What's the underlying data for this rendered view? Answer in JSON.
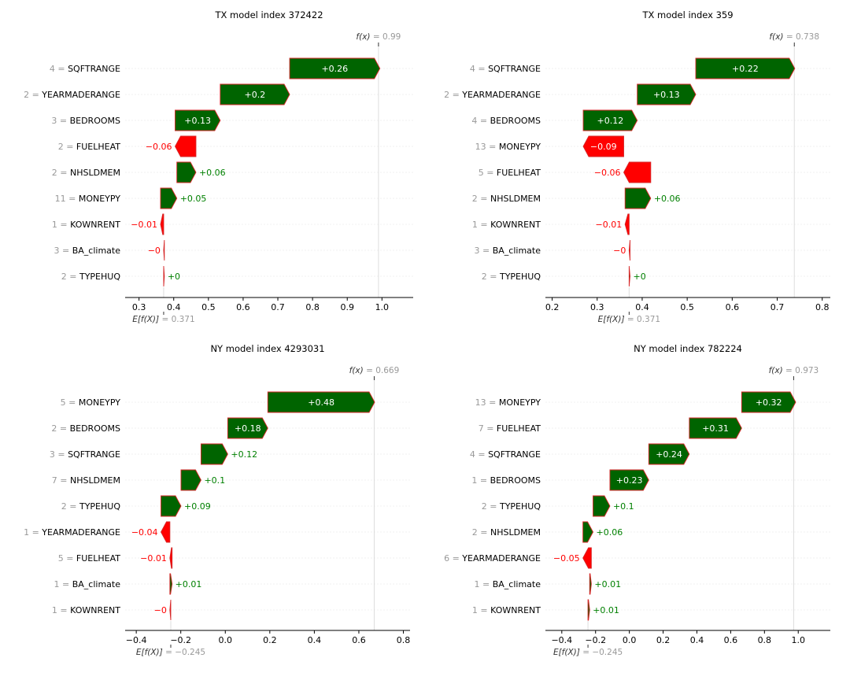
{
  "chart_data": [
    {
      "type": "waterfall",
      "title": "TX model index 372422",
      "fx_label": "f(x)",
      "fx_value": "= 0.99",
      "efx_label": "E[f(X)]",
      "efx_value": "= 0.371",
      "base_value": 0.371,
      "final_value": 0.99,
      "xlim": [
        0.26,
        1.09
      ],
      "xticks": [
        0.3,
        0.4,
        0.5,
        0.6,
        0.7,
        0.8,
        0.9,
        1.0
      ],
      "xtick_labels": [
        "0.3",
        "0.4",
        "0.5",
        "0.6",
        "0.7",
        "0.8",
        "0.9",
        "1.0"
      ],
      "features": [
        {
          "value": "4",
          "name": "SQFTRANGE",
          "shap": 0.26,
          "label": "+0.26"
        },
        {
          "value": "2",
          "name": "YEARMADERANGE",
          "shap": 0.2,
          "label": "+0.2"
        },
        {
          "value": "3",
          "name": "BEDROOMS",
          "shap": 0.13,
          "label": "+0.13"
        },
        {
          "value": "2",
          "name": "FUELHEAT",
          "shap": -0.06,
          "label": "−0.06"
        },
        {
          "value": "2",
          "name": "NHSLDMEM",
          "shap": 0.055,
          "label": "+0.06"
        },
        {
          "value": "11",
          "name": "MONEYPY",
          "shap": 0.047,
          "label": "+0.05"
        },
        {
          "value": "1",
          "name": "KOWNRENT",
          "shap": -0.009,
          "label": "−0.01"
        },
        {
          "value": "3",
          "name": "BA_climate",
          "shap": -0.002,
          "label": "−0"
        },
        {
          "value": "2",
          "name": "TYPEHUQ",
          "shap": 0.002,
          "label": "+0"
        }
      ]
    },
    {
      "type": "waterfall",
      "title": "TX model index 359",
      "fx_label": "f(x)",
      "fx_value": "= 0.738",
      "efx_label": "E[f(X)]",
      "efx_value": "= 0.371",
      "base_value": 0.371,
      "final_value": 0.738,
      "xlim": [
        0.185,
        0.818
      ],
      "xticks": [
        0.2,
        0.3,
        0.4,
        0.5,
        0.6,
        0.7,
        0.8
      ],
      "xtick_labels": [
        "0.2",
        "0.3",
        "0.4",
        "0.5",
        "0.6",
        "0.7",
        "0.8"
      ],
      "features": [
        {
          "value": "4",
          "name": "SQFTRANGE",
          "shap": 0.22,
          "label": "+0.22"
        },
        {
          "value": "2",
          "name": "YEARMADERANGE",
          "shap": 0.13,
          "label": "+0.13"
        },
        {
          "value": "4",
          "name": "BEDROOMS",
          "shap": 0.12,
          "label": "+0.12"
        },
        {
          "value": "13",
          "name": "MONEYPY",
          "shap": -0.09,
          "label": "−0.09"
        },
        {
          "value": "5",
          "name": "FUELHEAT",
          "shap": -0.06,
          "label": "−0.06"
        },
        {
          "value": "2",
          "name": "NHSLDMEM",
          "shap": 0.057,
          "label": "+0.06"
        },
        {
          "value": "1",
          "name": "KOWNRENT",
          "shap": -0.009,
          "label": "−0.01"
        },
        {
          "value": "3",
          "name": "BA_climate",
          "shap": -0.002,
          "label": "−0"
        },
        {
          "value": "2",
          "name": "TYPEHUQ",
          "shap": 0.002,
          "label": "+0"
        }
      ]
    },
    {
      "type": "waterfall",
      "title": "NY model index 4293031",
      "fx_label": "f(x)",
      "fx_value": "= 0.669",
      "efx_label": "E[f(X)]",
      "efx_value": "= −0.245",
      "base_value": -0.245,
      "final_value": 0.669,
      "xlim": [
        -0.45,
        0.83
      ],
      "xticks": [
        -0.4,
        -0.2,
        0.0,
        0.2,
        0.4,
        0.6,
        0.8
      ],
      "xtick_labels": [
        "−0.4",
        "−0.2",
        "0.0",
        "0.2",
        "0.4",
        "0.6",
        "0.8"
      ],
      "features": [
        {
          "value": "5",
          "name": "MONEYPY",
          "shap": 0.48,
          "label": "+0.48"
        },
        {
          "value": "2",
          "name": "BEDROOMS",
          "shap": 0.18,
          "label": "+0.18"
        },
        {
          "value": "3",
          "name": "SQFTRANGE",
          "shap": 0.12,
          "label": "+0.12"
        },
        {
          "value": "7",
          "name": "NHSLDMEM",
          "shap": 0.09,
          "label": "+0.1"
        },
        {
          "value": "2",
          "name": "TYPEHUQ",
          "shap": 0.09,
          "label": "+0.09"
        },
        {
          "value": "1",
          "name": "YEARMADERANGE",
          "shap": -0.04,
          "label": "−0.04"
        },
        {
          "value": "5",
          "name": "FUELHEAT",
          "shap": -0.01,
          "label": "−0.01"
        },
        {
          "value": "1",
          "name": "BA_climate",
          "shap": 0.01,
          "label": "+0.01"
        },
        {
          "value": "1",
          "name": "KOWNRENT",
          "shap": -0.004,
          "label": "−0"
        }
      ]
    },
    {
      "type": "waterfall",
      "title": "NY model index 782224",
      "fx_label": "f(x)",
      "fx_value": "= 0.973",
      "efx_label": "E[f(X)]",
      "efx_value": "= −0.245",
      "base_value": -0.245,
      "final_value": 0.973,
      "xlim": [
        -0.497,
        1.19
      ],
      "xticks": [
        -0.4,
        -0.2,
        0.0,
        0.2,
        0.4,
        0.6,
        0.8,
        1.0
      ],
      "xtick_labels": [
        "−0.4",
        "−0.2",
        "0.0",
        "0.2",
        "0.4",
        "0.6",
        "0.8",
        "1.0"
      ],
      "features": [
        {
          "value": "13",
          "name": "MONEYPY",
          "shap": 0.32,
          "label": "+0.32"
        },
        {
          "value": "7",
          "name": "FUELHEAT",
          "shap": 0.31,
          "label": "+0.31"
        },
        {
          "value": "4",
          "name": "SQFTRANGE",
          "shap": 0.24,
          "label": "+0.24"
        },
        {
          "value": "1",
          "name": "BEDROOMS",
          "shap": 0.23,
          "label": "+0.23"
        },
        {
          "value": "2",
          "name": "TYPEHUQ",
          "shap": 0.1,
          "label": "+0.1"
        },
        {
          "value": "2",
          "name": "NHSLDMEM",
          "shap": 0.06,
          "label": "+0.06"
        },
        {
          "value": "6",
          "name": "YEARMADERANGE",
          "shap": -0.05,
          "label": "−0.05"
        },
        {
          "value": "1",
          "name": "BA_climate",
          "shap": 0.01,
          "label": "+0.01"
        },
        {
          "value": "1",
          "name": "KOWNRENT",
          "shap": 0.01,
          "label": "+0.01"
        }
      ]
    }
  ],
  "colors": {
    "positive_fill": "#006400",
    "negative_fill": "#ff0000",
    "bar_edge": "#d62728",
    "positive_text": "#008000",
    "negative_text": "#ff0000",
    "muted_text": "#999999"
  }
}
